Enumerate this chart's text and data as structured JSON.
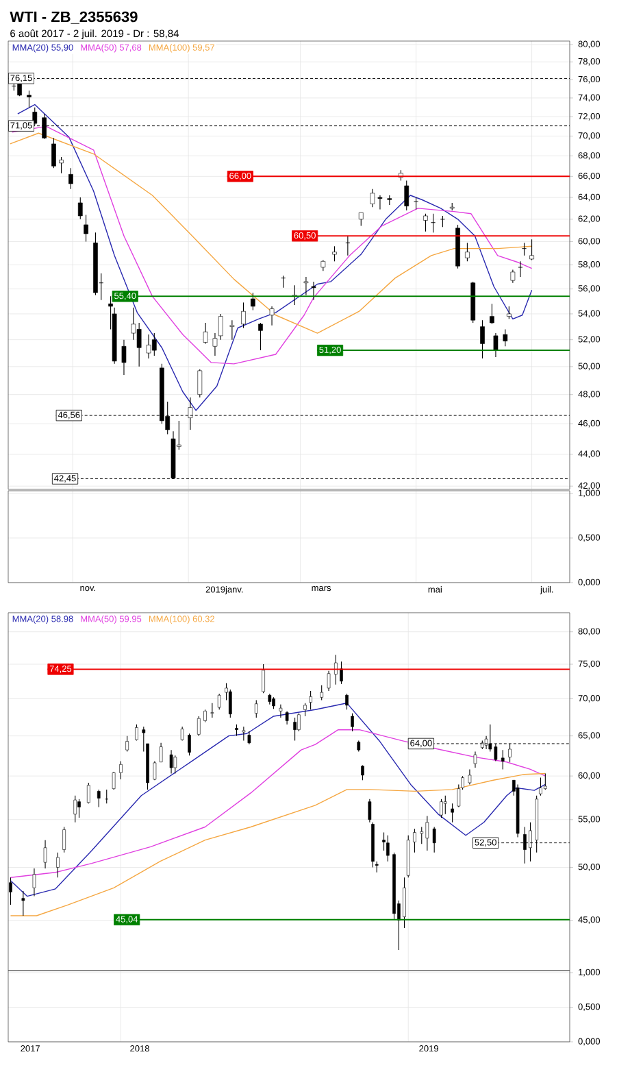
{
  "chart_data": [
    {
      "type": "candlestick",
      "title": "WTI - ZB_2355639",
      "subtitle": "6 août 2017 - 2 juil. 2019 - Dr : 58,84",
      "color": "#000000",
      "log": "y",
      "grid": true,
      "legend": "top left",
      "tick_labels": "y",
      "xlim": [
        "2018-09-28",
        "2019-07-21"
      ],
      "xticks": [
        {
          "value": "2018-11-01",
          "label": null
        },
        {
          "value": "2019-01-01",
          "label": null
        },
        {
          "value": "2019-03-01",
          "label": null
        },
        {
          "value": "2019-05-01",
          "label": null
        },
        {
          "value": "2019-07-01",
          "label": null
        }
      ],
      "ylim": [
        41.8,
        80.4
      ],
      "yticks": [
        {
          "value": 42,
          "label": "42,00"
        },
        {
          "value": 44,
          "label": "44,00"
        },
        {
          "value": 46,
          "label": "46,00"
        },
        {
          "value": 48,
          "label": "48,00"
        },
        {
          "value": 50,
          "label": "50,00"
        },
        {
          "value": 52,
          "label": "52,00"
        },
        {
          "value": 54,
          "label": "54,00"
        },
        {
          "value": 56,
          "label": "56,00"
        },
        {
          "value": 58,
          "label": "58,00"
        },
        {
          "value": 60,
          "label": "60,00"
        },
        {
          "value": 62,
          "label": "62,00"
        },
        {
          "value": 64,
          "label": "64,00"
        },
        {
          "value": 66,
          "label": "66,00"
        },
        {
          "value": 68,
          "label": "68,00"
        },
        {
          "value": 70,
          "label": "70,00"
        },
        {
          "value": 72,
          "label": "72,00"
        },
        {
          "value": 74,
          "label": "74,00"
        },
        {
          "value": 76,
          "label": "76,00"
        },
        {
          "value": 78,
          "label": "78,00"
        },
        {
          "value": 80,
          "label": "80,00"
        }
      ],
      "x": [
        "2018-10-01",
        "2018-10-04",
        "2018-10-09",
        "2018-10-12",
        "2018-10-17",
        "2018-10-22",
        "2018-10-26",
        "2018-10-31",
        "2018-11-05",
        "2018-11-08",
        "2018-11-13",
        "2018-11-16",
        "2018-11-21",
        "2018-11-23",
        "2018-11-28",
        "2018-12-03",
        "2018-12-06",
        "2018-12-11",
        "2018-12-14",
        "2018-12-18",
        "2018-12-21",
        "2018-12-24",
        "2018-12-27",
        "2019-01-02",
        "2019-01-07",
        "2019-01-10",
        "2019-01-15",
        "2019-01-18",
        "2019-01-24",
        "2019-01-30",
        "2019-02-04",
        "2019-02-08",
        "2019-02-14",
        "2019-02-20",
        "2019-02-26",
        "2019-03-04",
        "2019-03-08",
        "2019-03-13",
        "2019-03-19",
        "2019-03-26",
        "2019-04-02",
        "2019-04-08",
        "2019-04-12",
        "2019-04-17",
        "2019-04-23",
        "2019-04-26",
        "2019-05-01",
        "2019-05-06",
        "2019-05-10",
        "2019-05-15",
        "2019-05-20",
        "2019-05-23",
        "2019-05-28",
        "2019-05-31",
        "2019-06-05",
        "2019-06-10",
        "2019-06-12",
        "2019-06-17",
        "2019-06-19",
        "2019-06-21",
        "2019-06-25",
        "2019-06-27",
        "2019-07-01"
      ],
      "ohlc": [
        [
          75.3,
          76.2,
          74.8,
          75.3
        ],
        [
          75.6,
          76.0,
          74.2,
          74.3
        ],
        [
          74.3,
          74.8,
          73.0,
          74.1
        ],
        [
          72.5,
          73.0,
          71.1,
          71.3
        ],
        [
          71.9,
          72.3,
          69.7,
          69.8
        ],
        [
          69.2,
          69.8,
          66.8,
          67.0
        ],
        [
          67.3,
          67.9,
          66.3,
          67.6
        ],
        [
          66.2,
          66.8,
          64.8,
          65.3
        ],
        [
          63.5,
          64.0,
          62.0,
          62.3
        ],
        [
          61.5,
          62.4,
          60.0,
          60.7
        ],
        [
          59.9,
          60.8,
          55.5,
          55.7
        ],
        [
          56.5,
          57.3,
          55.1,
          56.5
        ],
        [
          54.8,
          55.4,
          52.8,
          54.6
        ],
        [
          54.0,
          54.5,
          50.2,
          50.4
        ],
        [
          51.5,
          52.0,
          49.4,
          50.3
        ],
        [
          52.5,
          54.5,
          52.0,
          53.2
        ],
        [
          52.8,
          53.3,
          50.0,
          51.4
        ],
        [
          51.0,
          52.4,
          50.6,
          51.6
        ],
        [
          52.0,
          52.5,
          50.8,
          51.2
        ],
        [
          49.9,
          50.2,
          46.0,
          46.2
        ],
        [
          46.5,
          47.5,
          45.3,
          45.6
        ],
        [
          45.0,
          45.5,
          42.45,
          42.5
        ],
        [
          44.5,
          46.2,
          44.3,
          44.6
        ],
        [
          46.4,
          47.8,
          45.6,
          47.1
        ],
        [
          48.0,
          49.8,
          47.8,
          49.7
        ],
        [
          51.8,
          53.3,
          51.7,
          52.6
        ],
        [
          51.5,
          52.5,
          50.8,
          52.1
        ],
        [
          52.3,
          54.0,
          52.0,
          53.8
        ],
        [
          53.0,
          53.5,
          52.0,
          53.1
        ],
        [
          53.2,
          54.9,
          52.9,
          54.2
        ],
        [
          55.2,
          55.7,
          54.3,
          54.6
        ],
        [
          53.2,
          53.3,
          51.2,
          52.7
        ],
        [
          53.9,
          54.6,
          53.1,
          54.4
        ],
        [
          56.9,
          57.1,
          56.1,
          56.9
        ],
        [
          55.4,
          56.3,
          54.7,
          55.5
        ],
        [
          56.5,
          57.0,
          55.5,
          56.6
        ],
        [
          56.2,
          56.6,
          55.1,
          56.1
        ],
        [
          57.8,
          58.4,
          57.5,
          58.3
        ],
        [
          58.9,
          59.6,
          58.3,
          59.1
        ],
        [
          59.9,
          60.5,
          58.8,
          59.9
        ],
        [
          62.0,
          62.6,
          61.4,
          62.6
        ],
        [
          63.4,
          64.8,
          63.1,
          64.4
        ],
        [
          64.0,
          64.2,
          62.9,
          63.9
        ],
        [
          63.9,
          64.2,
          63.3,
          63.8
        ],
        [
          65.9,
          66.6,
          65.6,
          66.3
        ],
        [
          65.1,
          65.6,
          62.8,
          63.2
        ],
        [
          63.6,
          64.0,
          62.9,
          63.6
        ],
        [
          61.9,
          62.5,
          60.9,
          62.3
        ],
        [
          61.7,
          62.5,
          60.8,
          61.7
        ],
        [
          62.0,
          62.3,
          61.3,
          62.0
        ],
        [
          63.0,
          63.5,
          62.8,
          63.1
        ],
        [
          61.2,
          61.5,
          57.7,
          57.9
        ],
        [
          58.6,
          59.9,
          58.3,
          59.1
        ],
        [
          56.5,
          56.6,
          53.3,
          53.5
        ],
        [
          53.0,
          53.5,
          50.6,
          51.7
        ],
        [
          53.8,
          54.8,
          53.2,
          53.3
        ],
        [
          52.3,
          52.5,
          50.7,
          51.2
        ],
        [
          52.4,
          52.8,
          51.5,
          51.9
        ],
        [
          53.8,
          54.6,
          53.6,
          54.0
        ],
        [
          56.7,
          57.6,
          56.5,
          57.4
        ],
        [
          57.8,
          58.3,
          57.0,
          57.8
        ],
        [
          59.4,
          59.9,
          58.8,
          59.4
        ],
        [
          58.5,
          60.2,
          58.4,
          58.8
        ]
      ],
      "series": [
        {
          "name": "MMA(20) 55,90",
          "type": "line",
          "color": "#2a2ab0",
          "x": [
            "2018-10-03",
            "2018-10-12",
            "2018-10-30",
            "2018-11-12",
            "2018-11-23",
            "2018-12-05",
            "2018-12-18",
            "2018-12-29",
            "2019-01-05",
            "2019-01-16",
            "2019-01-27",
            "2019-02-07",
            "2019-02-16",
            "2019-03-10",
            "2019-03-17",
            "2019-04-02",
            "2019-04-15",
            "2019-04-28",
            "2019-05-04",
            "2019-05-14",
            "2019-05-23",
            "2019-06-01",
            "2019-06-11",
            "2019-06-21",
            "2019-06-26",
            "2019-07-01"
          ],
          "values": [
            72.3,
            73.3,
            69.9,
            64.6,
            58.8,
            54.1,
            51.4,
            48.2,
            46.9,
            48.6,
            52.9,
            53.6,
            54.1,
            56.4,
            56.6,
            58.9,
            62.0,
            64.2,
            63.8,
            63.0,
            62.0,
            60.5,
            56.2,
            53.6,
            53.9,
            55.9
          ]
        },
        {
          "name": "MMA(50) 57,68",
          "type": "line",
          "color": "#e040e0",
          "x": [
            "2018-09-30",
            "2018-10-18",
            "2018-11-12",
            "2018-11-28",
            "2018-12-13",
            "2018-12-29",
            "2019-01-13",
            "2019-01-25",
            "2019-02-16",
            "2019-03-03",
            "2019-03-08",
            "2019-03-27",
            "2019-04-13",
            "2019-05-02",
            "2019-05-21",
            "2019-05-30",
            "2019-06-13",
            "2019-06-24",
            "2019-07-01"
          ],
          "values": [
            70.4,
            71.0,
            68.6,
            60.5,
            55.4,
            52.4,
            50.3,
            50.2,
            50.9,
            53.9,
            55.3,
            58.8,
            61.4,
            63.0,
            62.7,
            62.5,
            58.8,
            58.2,
            57.7
          ]
        },
        {
          "name": "MMA(100) 59,57",
          "type": "line",
          "color": "#f5a742",
          "x": [
            "2018-09-29",
            "2018-10-14",
            "2018-11-12",
            "2018-12-13",
            "2019-01-03",
            "2019-01-25",
            "2019-02-16",
            "2019-03-10",
            "2019-04-01",
            "2019-04-20",
            "2019-05-09",
            "2019-05-21",
            "2019-06-13",
            "2019-07-01"
          ],
          "values": [
            69.2,
            70.3,
            68.2,
            64.2,
            60.5,
            56.8,
            53.9,
            52.5,
            54.2,
            56.9,
            58.8,
            59.4,
            59.4,
            59.6
          ]
        }
      ],
      "ref_lines": [
        {
          "axis": "y",
          "value": 76.15,
          "label": "76,15",
          "color": "#000000",
          "line_style": "dashed"
        },
        {
          "axis": "y",
          "value": 71.05,
          "label": "71,05",
          "color": "#000000",
          "line_style": "dashed"
        },
        {
          "axis": "y",
          "value": 66.0,
          "label": "66,00",
          "color": "#ee0000",
          "line_style": "solid"
        },
        {
          "axis": "y",
          "value": 60.5,
          "label": "60,50",
          "color": "#ee0000",
          "line_style": "solid"
        },
        {
          "axis": "y",
          "value": 55.4,
          "label": "55,40",
          "color": "#008000",
          "line_style": "solid"
        },
        {
          "axis": "y",
          "value": 51.2,
          "label": "51,20",
          "color": "#008000",
          "line_style": "solid"
        },
        {
          "axis": "y",
          "value": 46.56,
          "label": "46,56",
          "color": "#000000",
          "line_style": "dashed"
        },
        {
          "axis": "y",
          "value": 42.45,
          "label": "42,45",
          "color": "#000000",
          "line_style": "dashed"
        }
      ]
    },
    {
      "type": "line",
      "grid": true,
      "xlim": [
        "2018-09-28",
        "2019-07-21"
      ],
      "xticks": [
        {
          "value": "2018-11-01",
          "label": null
        },
        {
          "value": "2019-01-01",
          "label": null
        },
        {
          "value": "2019-03-01",
          "label": null
        },
        {
          "value": "2019-05-01",
          "label": null
        },
        {
          "value": "2019-07-01",
          "label": null
        },
        {
          "value": "2018-11-09",
          "label": "nov."
        },
        {
          "value": "2019-01-20",
          "label": "2019janv."
        },
        {
          "value": "2019-03-12",
          "label": "mars"
        },
        {
          "value": "2019-05-11",
          "label": "mai"
        },
        {
          "value": "2019-07-09",
          "label": "juil."
        }
      ],
      "ylim": [
        0,
        1.03
      ],
      "yticks": [
        {
          "value": 0,
          "label": "0,000"
        },
        {
          "value": 0.5,
          "label": "0,500"
        },
        {
          "value": 1,
          "label": "1,000"
        }
      ]
    },
    {
      "type": "candlestick",
      "color": "#000000",
      "log": "y",
      "grid": true,
      "legend": "top left",
      "tick_labels": "y",
      "xlim": [
        "2017-08-11",
        "2019-07-25"
      ],
      "xticks": [
        {
          "value": "2018-01-01",
          "label": null
        },
        {
          "value": "2019-01-01",
          "label": null
        }
      ],
      "ylim": [
        40.7,
        83.1
      ],
      "yticks": [
        {
          "value": 45,
          "label": "45,00"
        },
        {
          "value": 50,
          "label": "50,00"
        },
        {
          "value": 55,
          "label": "55,00"
        },
        {
          "value": 60,
          "label": "60,00"
        },
        {
          "value": 65,
          "label": "65,00"
        },
        {
          "value": 70,
          "label": "70,00"
        },
        {
          "value": 75,
          "label": "75,00"
        },
        {
          "value": 80,
          "label": "80,00"
        }
      ],
      "x": [
        "2017-08-14",
        "2017-08-30",
        "2017-09-13",
        "2017-09-27",
        "2017-10-13",
        "2017-10-21",
        "2017-11-04",
        "2017-11-09",
        "2017-11-21",
        "2017-12-04",
        "2017-12-14",
        "2017-12-23",
        "2018-01-01",
        "2018-01-09",
        "2018-01-21",
        "2018-01-30",
        "2018-02-04",
        "2018-02-13",
        "2018-02-21",
        "2018-03-06",
        "2018-03-11",
        "2018-03-20",
        "2018-03-29",
        "2018-04-10",
        "2018-04-18",
        "2018-04-27",
        "2018-05-06",
        "2018-05-15",
        "2018-05-20",
        "2018-05-28",
        "2018-06-06",
        "2018-06-13",
        "2018-06-22",
        "2018-07-01",
        "2018-07-09",
        "2018-07-14",
        "2018-07-23",
        "2018-07-31",
        "2018-08-10",
        "2018-08-15",
        "2018-08-23",
        "2018-08-30",
        "2018-09-13",
        "2018-09-22",
        "2018-10-01",
        "2018-10-08",
        "2018-10-15",
        "2018-10-22",
        "2018-10-30",
        "2018-11-04",
        "2018-11-13",
        "2018-11-17",
        "2018-11-22",
        "2018-12-01",
        "2018-12-06",
        "2018-12-14",
        "2018-12-20",
        "2018-12-27",
        "2019-01-01",
        "2019-01-09",
        "2019-01-18",
        "2019-01-25",
        "2019-02-03",
        "2019-02-12",
        "2019-02-17",
        "2019-02-26",
        "2019-03-06",
        "2019-03-11",
        "2019-03-20",
        "2019-03-27",
        "2019-04-05",
        "2019-04-10",
        "2019-04-15",
        "2019-04-22",
        "2019-05-01",
        "2019-05-10",
        "2019-05-15",
        "2019-05-20",
        "2019-05-29",
        "2019-06-05",
        "2019-06-13",
        "2019-06-18",
        "2019-06-24"
      ],
      "ohlc": [
        [
          48.5,
          49.0,
          46.4,
          47.6
        ],
        [
          47.0,
          47.7,
          45.4,
          46.8
        ],
        [
          48.0,
          49.9,
          47.2,
          49.3
        ],
        [
          50.5,
          52.8,
          49.9,
          52.0
        ],
        [
          50.0,
          51.5,
          49.0,
          51.0
        ],
        [
          51.8,
          54.2,
          51.5,
          53.9
        ],
        [
          55.6,
          57.7,
          54.7,
          57.2
        ],
        [
          57.0,
          57.3,
          55.2,
          56.4
        ],
        [
          56.9,
          59.2,
          56.8,
          58.9
        ],
        [
          58.2,
          58.4,
          56.4,
          57.4
        ],
        [
          57.3,
          58.4,
          56.8,
          57.3
        ],
        [
          58.5,
          60.5,
          58.4,
          60.4
        ],
        [
          60.4,
          61.8,
          59.6,
          61.4
        ],
        [
          63.2,
          65.0,
          63.0,
          64.3
        ],
        [
          64.5,
          66.5,
          64.4,
          66.1
        ],
        [
          65.8,
          66.2,
          63.0,
          65.4
        ],
        [
          64.0,
          64.0,
          58.4,
          59.2
        ],
        [
          59.6,
          61.8,
          59.5,
          61.6
        ],
        [
          61.7,
          64.1,
          61.7,
          63.6
        ],
        [
          62.6,
          63.2,
          60.3,
          61.0
        ],
        [
          61.0,
          62.5,
          60.3,
          62.3
        ],
        [
          64.5,
          66.2,
          64.4,
          65.9
        ],
        [
          65.1,
          65.3,
          62.5,
          62.9
        ],
        [
          65.2,
          67.6,
          65.0,
          67.3
        ],
        [
          67.0,
          68.5,
          66.8,
          68.3
        ],
        [
          68.0,
          69.4,
          67.4,
          68.1
        ],
        [
          68.8,
          70.7,
          68.5,
          70.5
        ],
        [
          70.9,
          72.2,
          69.8,
          71.5
        ],
        [
          71.0,
          71.3,
          67.4,
          67.9
        ],
        [
          66.0,
          66.5,
          65.0,
          65.8
        ],
        [
          65.5,
          66.2,
          64.4,
          65.7
        ],
        [
          65.1,
          65.6,
          63.9,
          64.1
        ],
        [
          68.0,
          69.8,
          67.4,
          69.3
        ],
        [
          71.0,
          75.0,
          70.8,
          74.1
        ],
        [
          70.5,
          70.7,
          69.2,
          69.6
        ],
        [
          70.0,
          70.2,
          68.6,
          69.0
        ],
        [
          68.3,
          69.2,
          67.4,
          68.7
        ],
        [
          68.1,
          68.3,
          66.5,
          67.0
        ],
        [
          66.8,
          67.4,
          64.4,
          65.8
        ],
        [
          65.8,
          68.0,
          65.6,
          67.8
        ],
        [
          68.5,
          69.4,
          67.6,
          69.1
        ],
        [
          69.5,
          71.1,
          68.5,
          70.3
        ],
        [
          70.2,
          71.9,
          69.8,
          70.9
        ],
        [
          71.5,
          74.0,
          71.1,
          73.6
        ],
        [
          73.5,
          76.4,
          72.0,
          75.2
        ],
        [
          74.3,
          75.4,
          72.1,
          72.5
        ],
        [
          70.5,
          70.7,
          68.5,
          69.1
        ],
        [
          67.6,
          68.0,
          65.6,
          66.2
        ],
        [
          64.2,
          64.4,
          63.0,
          63.2
        ],
        [
          61.2,
          61.3,
          59.5,
          60.1
        ],
        [
          57.0,
          57.3,
          54.7,
          55.0
        ],
        [
          54.5,
          54.7,
          50.0,
          50.6
        ],
        [
          50.3,
          50.6,
          49.5,
          50.2
        ],
        [
          52.8,
          53.6,
          51.7,
          52.6
        ],
        [
          52.5,
          53.3,
          50.6,
          51.2
        ],
        [
          51.3,
          51.5,
          45.1,
          45.6
        ],
        [
          46.5,
          46.8,
          42.4,
          45.0
        ],
        [
          45.3,
          49.0,
          44.3,
          48.0
        ],
        [
          49.2,
          53.3,
          49.0,
          52.8
        ],
        [
          52.6,
          54.0,
          51.5,
          53.6
        ],
        [
          53.5,
          54.2,
          52.4,
          53.7
        ],
        [
          53.0,
          55.4,
          51.7,
          54.7
        ],
        [
          54.0,
          54.2,
          51.5,
          52.5
        ],
        [
          55.5,
          57.3,
          55.2,
          57.0
        ],
        [
          56.8,
          57.7,
          55.6,
          57.0
        ],
        [
          56.2,
          56.8,
          54.7,
          55.8
        ],
        [
          56.5,
          59.0,
          56.4,
          58.5
        ],
        [
          58.6,
          60.0,
          58.4,
          59.8
        ],
        [
          59.2,
          60.8,
          59.0,
          60.1
        ],
        [
          61.5,
          63.0,
          61.0,
          62.6
        ],
        [
          63.5,
          64.4,
          63.3,
          64.1
        ],
        [
          63.8,
          65.0,
          63.3,
          64.6
        ],
        [
          64.0,
          66.5,
          63.0,
          63.3
        ],
        [
          63.6,
          64.0,
          61.8,
          62.0
        ],
        [
          62.2,
          63.2,
          60.8,
          61.8
        ],
        [
          62.3,
          64.0,
          61.7,
          63.3
        ],
        [
          59.5,
          59.5,
          57.7,
          58.2
        ],
        [
          58.6,
          59.0,
          53.1,
          53.5
        ],
        [
          53.4,
          54.2,
          50.4,
          51.8
        ],
        [
          52.0,
          54.7,
          50.6,
          53.8
        ],
        [
          52.8,
          57.7,
          51.5,
          57.3
        ],
        [
          57.9,
          59.8,
          57.7,
          58.6
        ],
        [
          58.5,
          60.3,
          58.4,
          58.8
        ]
      ],
      "series": [
        {
          "name": "MMA(20) 58.98",
          "type": "line",
          "color": "#2a2ab0",
          "x": [
            "2017-08-14",
            "2017-09-04",
            "2017-10-10",
            "2017-11-25",
            "2018-01-27",
            "2018-04-01",
            "2018-05-18",
            "2018-06-10",
            "2018-07-14",
            "2018-09-05",
            "2018-10-15",
            "2018-11-25",
            "2019-01-04",
            "2019-02-08",
            "2019-03-15",
            "2019-04-07",
            "2019-05-06",
            "2019-05-18",
            "2019-06-10",
            "2019-06-24"
          ],
          "values": [
            48.7,
            47.2,
            47.9,
            51.7,
            57.7,
            61.8,
            65.0,
            65.3,
            67.6,
            68.5,
            69.4,
            64.4,
            59.0,
            55.6,
            53.3,
            54.7,
            57.7,
            58.6,
            58.3,
            59.0
          ]
        },
        {
          "name": "MMA(50) 59.95",
          "type": "line",
          "color": "#e040e0",
          "x": [
            "2017-08-14",
            "2017-10-10",
            "2017-11-25",
            "2018-02-08",
            "2018-04-18",
            "2018-06-15",
            "2018-08-18",
            "2018-09-05",
            "2018-10-04",
            "2018-10-31",
            "2018-12-23",
            "2019-02-08",
            "2019-03-27",
            "2019-05-06",
            "2019-06-05",
            "2019-06-24"
          ],
          "values": [
            49.0,
            49.5,
            50.4,
            52.1,
            54.2,
            58.0,
            63.2,
            63.9,
            65.8,
            65.8,
            64.4,
            63.3,
            62.3,
            61.7,
            60.8,
            60.0
          ]
        },
        {
          "name": "MMA(100) 60.32",
          "type": "line",
          "color": "#f5a742",
          "x": [
            "2017-08-14",
            "2017-09-16",
            "2017-10-26",
            "2017-12-23",
            "2018-02-20",
            "2018-04-18",
            "2018-06-15",
            "2018-09-05",
            "2018-10-15",
            "2018-11-13",
            "2019-01-10",
            "2019-02-26",
            "2019-04-19",
            "2019-05-29",
            "2019-06-24"
          ],
          "values": [
            45.4,
            45.4,
            46.4,
            48.0,
            50.6,
            52.8,
            54.2,
            56.6,
            58.4,
            58.4,
            58.2,
            58.4,
            59.5,
            60.2,
            60.3
          ]
        }
      ],
      "ref_lines": [
        {
          "axis": "y",
          "value": 74.25,
          "label": "74,25",
          "color": "#ee0000",
          "line_style": "solid"
        },
        {
          "axis": "y",
          "value": 64.0,
          "label": "64,00",
          "color": "#000000",
          "line_style": "dashed"
        },
        {
          "axis": "y",
          "value": 52.5,
          "label": "52,50",
          "color": "#000000",
          "line_style": "dashed"
        },
        {
          "axis": "y",
          "value": 45.04,
          "label": "45,04",
          "color": "#008000",
          "line_style": "solid"
        }
      ]
    },
    {
      "type": "line",
      "grid": true,
      "xlim": [
        "2017-08-11",
        "2019-07-25"
      ],
      "xticks": [
        {
          "value": "2018-01-01",
          "label": null
        },
        {
          "value": "2019-01-01",
          "label": null
        },
        {
          "value": "2017-09-08",
          "label": "2017"
        },
        {
          "value": "2018-01-25",
          "label": "2018"
        },
        {
          "value": "2019-01-27",
          "label": "2019"
        }
      ],
      "ylim": [
        0,
        1.03
      ],
      "yticks": [
        {
          "value": 0,
          "label": "0,000"
        },
        {
          "value": 0.5,
          "label": "0,500"
        },
        {
          "value": 1,
          "label": "1,000"
        }
      ]
    }
  ]
}
